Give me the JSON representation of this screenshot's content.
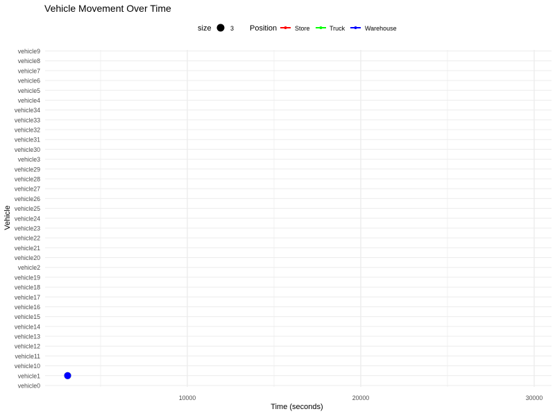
{
  "chart_data": {
    "type": "scatter",
    "title": "Vehicle Movement Over Time",
    "xlabel": "Time (seconds)",
    "ylabel": "Vehicle",
    "xlim": [
      1800,
      31000
    ],
    "x_ticks": [
      10000,
      20000,
      30000
    ],
    "x_tick_labels": [
      "10000",
      "20000",
      "30000"
    ],
    "x_minor_ticks": [
      5000,
      15000,
      25000
    ],
    "categories": [
      "vehicle0",
      "vehicle1",
      "vehicle10",
      "vehicle11",
      "vehicle12",
      "vehicle13",
      "vehicle14",
      "vehicle15",
      "vehicle16",
      "vehicle17",
      "vehicle18",
      "vehicle19",
      "vehicle2",
      "vehicle20",
      "vehicle21",
      "vehicle22",
      "vehicle23",
      "vehicle24",
      "vehicle25",
      "vehicle26",
      "vehicle27",
      "vehicle28",
      "vehicle29",
      "vehicle3",
      "vehicle30",
      "vehicle31",
      "vehicle32",
      "vehicle33",
      "vehicle34",
      "vehicle4",
      "vehicle5",
      "vehicle6",
      "vehicle7",
      "vehicle8",
      "vehicle9"
    ],
    "legend": {
      "placement": "top",
      "size": {
        "title": "size",
        "label": "3"
      },
      "position": {
        "title": "Position",
        "items": [
          {
            "label": "Store",
            "color": "#ff0000"
          },
          {
            "label": "Truck",
            "color": "#00ff00"
          },
          {
            "label": "Warehouse",
            "color": "#0000ff"
          }
        ]
      }
    },
    "series": [
      {
        "name": "Store",
        "color": "#ff0000",
        "points": [
          {
            "x": 3100,
            "y": "vehicle1"
          }
        ]
      },
      {
        "name": "Truck",
        "color": "#00ff00",
        "points": [
          {
            "x": 3100,
            "y": "vehicle1"
          }
        ]
      },
      {
        "name": "Warehouse",
        "color": "#0000ff",
        "points": [
          {
            "x": 3100,
            "y": "vehicle1"
          }
        ]
      }
    ],
    "grid": true
  }
}
